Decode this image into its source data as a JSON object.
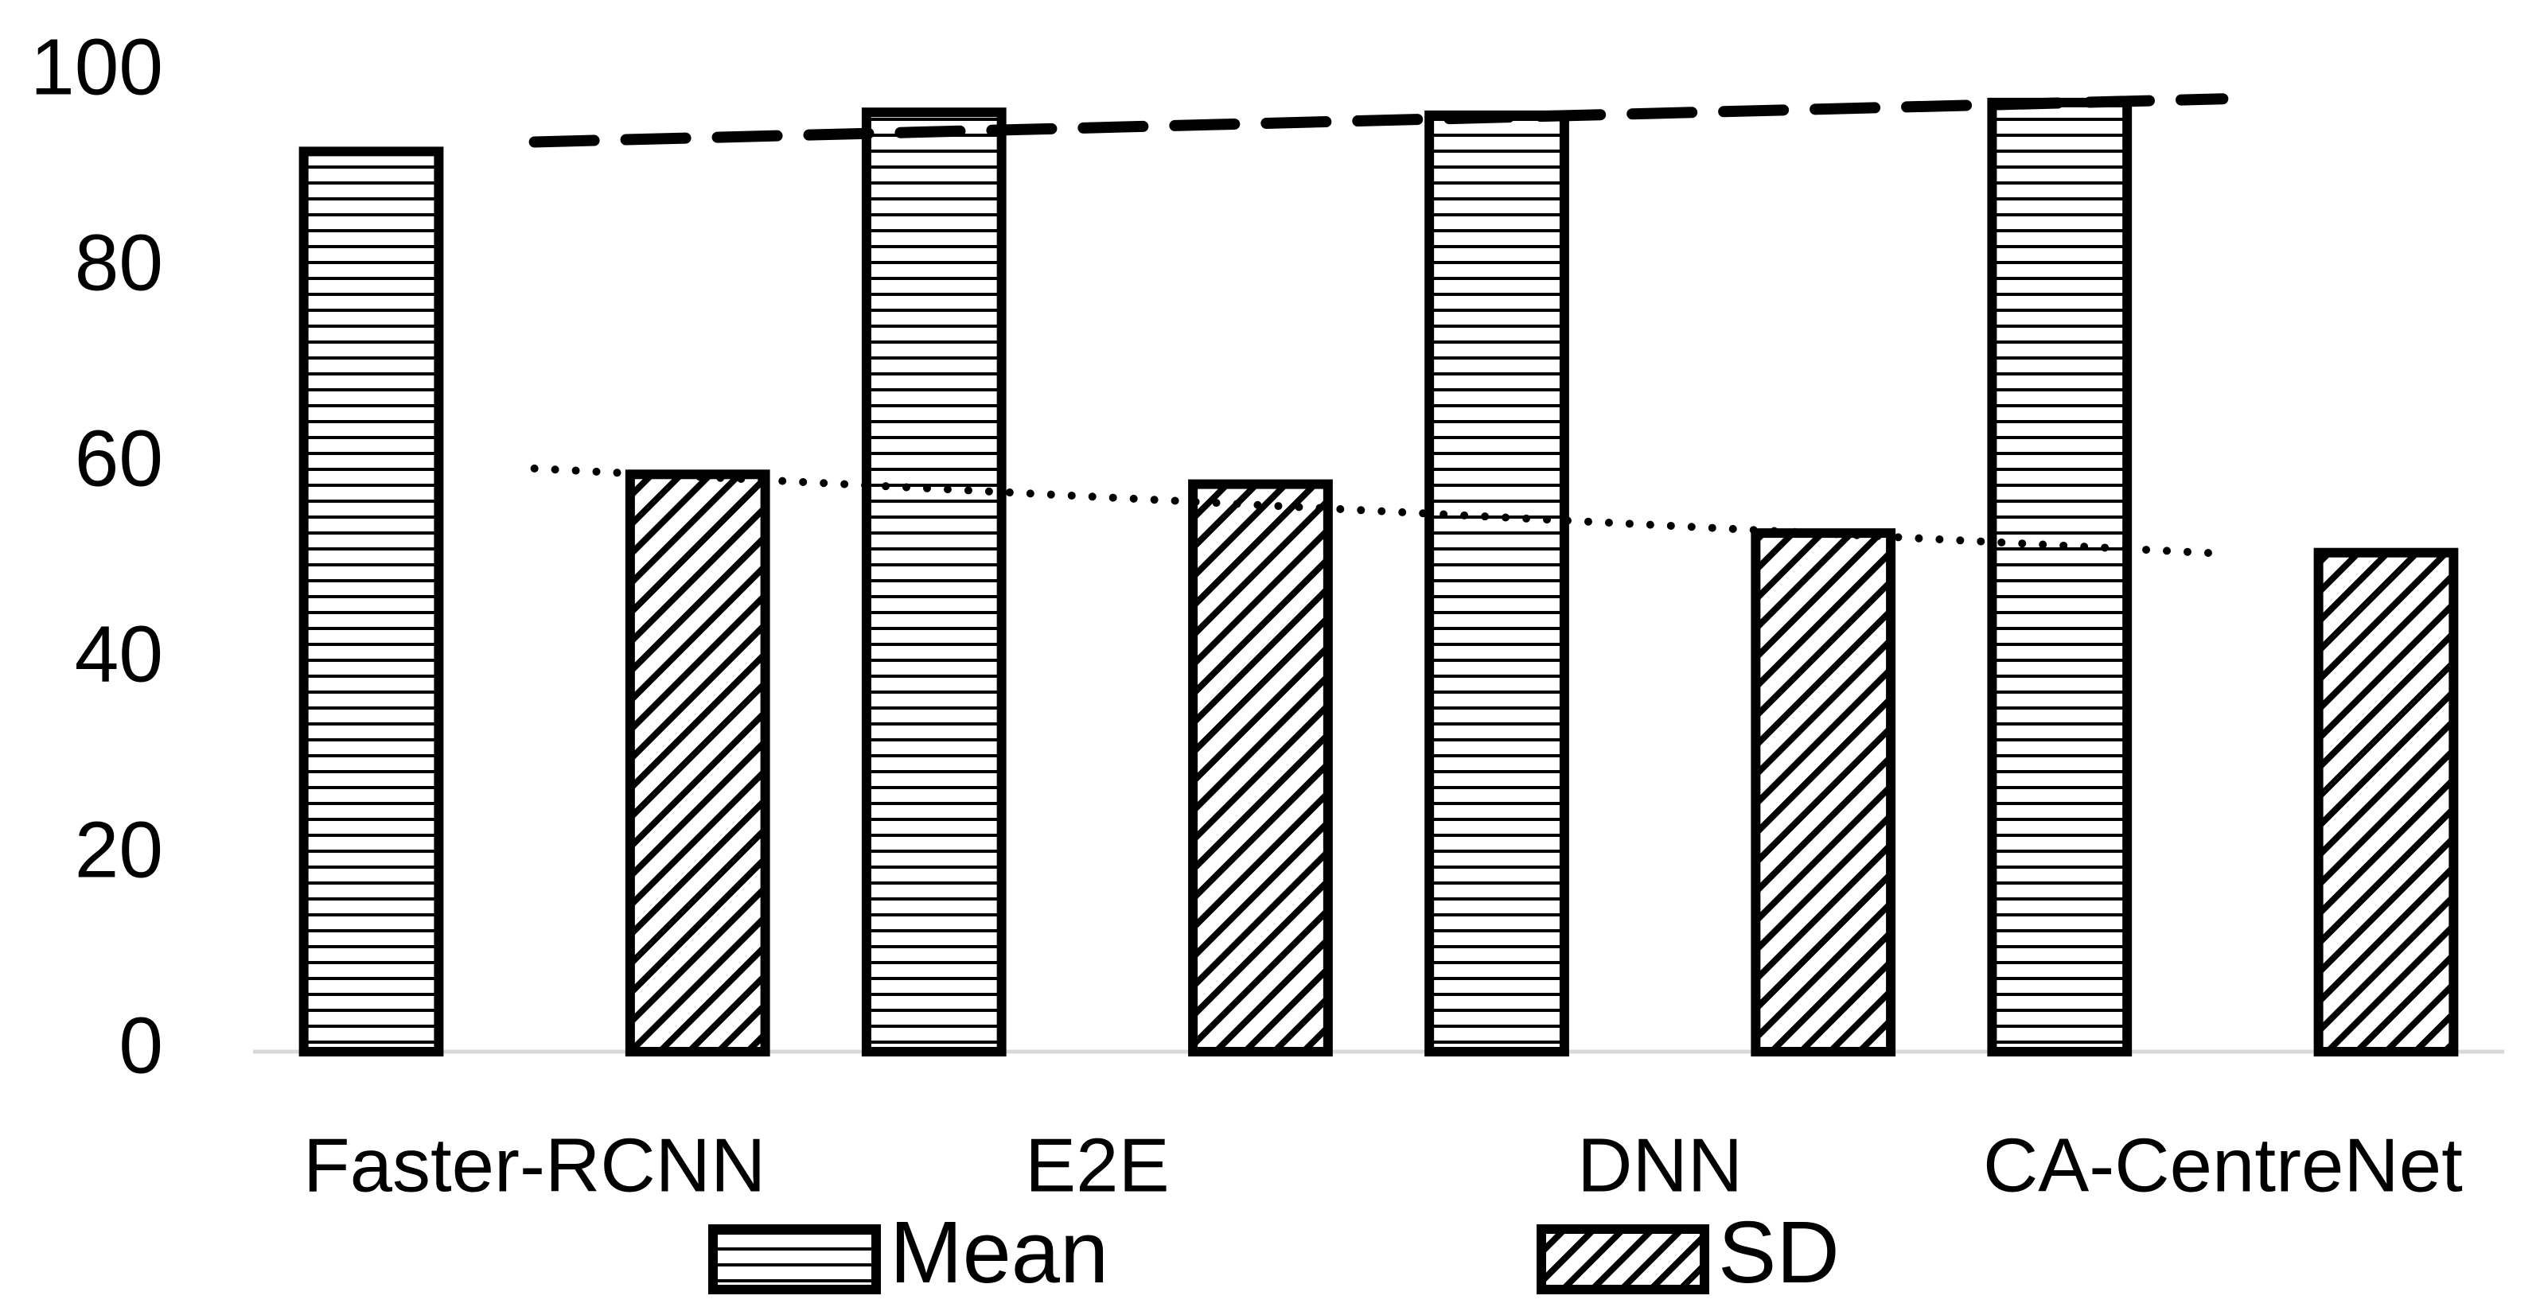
{
  "chart_data": {
    "type": "bar",
    "categories": [
      "Faster-RCNN",
      "E2E",
      "DNN",
      "CA-CentreNet"
    ],
    "series": [
      {
        "name": "Mean",
        "color": "#000000",
        "hatch": "horizontal",
        "trendline": "dashed",
        "values": [
          92,
          96,
          95.7,
          97
        ]
      },
      {
        "name": "SD",
        "color": "#000000",
        "hatch": "diagonal",
        "trendline": "dotted",
        "values": [
          59,
          58,
          53,
          51
        ]
      }
    ],
    "ylim": [
      0,
      100
    ],
    "yticks": [
      0,
      20,
      40,
      60,
      80,
      100
    ],
    "grid": false,
    "legend": "bottom"
  }
}
